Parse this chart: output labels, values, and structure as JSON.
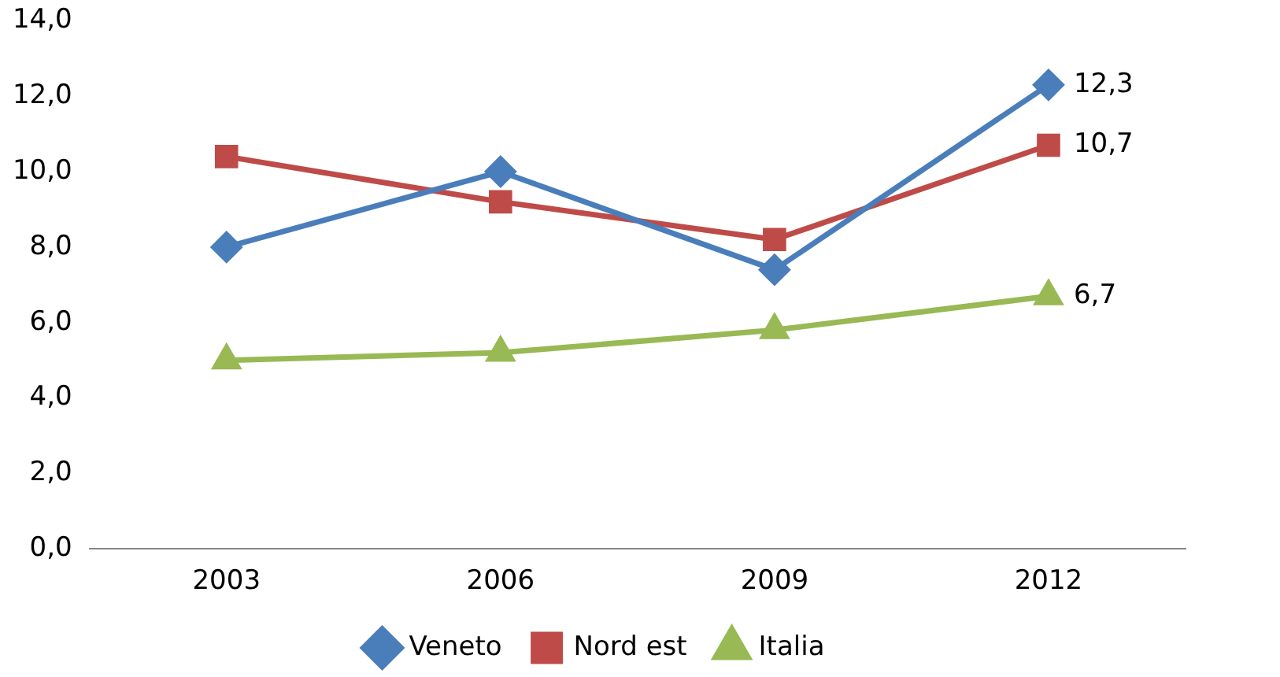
{
  "chart_data": {
    "type": "line",
    "categories": [
      "2003",
      "2006",
      "2009",
      "2012"
    ],
    "series": [
      {
        "name": "Veneto",
        "color": "#4a7ebb",
        "marker": "diamond",
        "values": [
          8.0,
          10.0,
          7.4,
          12.3
        ],
        "value_labels": [
          null,
          null,
          null,
          "12,3"
        ]
      },
      {
        "name": "Nord est",
        "color": "#be4b48",
        "marker": "square",
        "values": [
          10.4,
          9.2,
          8.2,
          10.7
        ],
        "value_labels": [
          null,
          null,
          null,
          "10,7"
        ]
      },
      {
        "name": "Italia",
        "color": "#98b954",
        "marker": "triangle",
        "values": [
          5.0,
          5.2,
          5.8,
          6.7
        ],
        "value_labels": [
          null,
          null,
          null,
          "6,7"
        ]
      }
    ],
    "ylim": [
      0,
      14
    ],
    "yticks": [
      {
        "value": 0,
        "label": "0,0"
      },
      {
        "value": 2,
        "label": "2,0"
      },
      {
        "value": 4,
        "label": "4,0"
      },
      {
        "value": 6,
        "label": "6,0"
      },
      {
        "value": 8,
        "label": "8,0"
      },
      {
        "value": 10,
        "label": "10,0"
      },
      {
        "value": 12,
        "label": "12,0"
      },
      {
        "value": 14,
        "label": "14,0"
      }
    ],
    "grid": false,
    "legend": "bottom",
    "line_style": "solid"
  }
}
